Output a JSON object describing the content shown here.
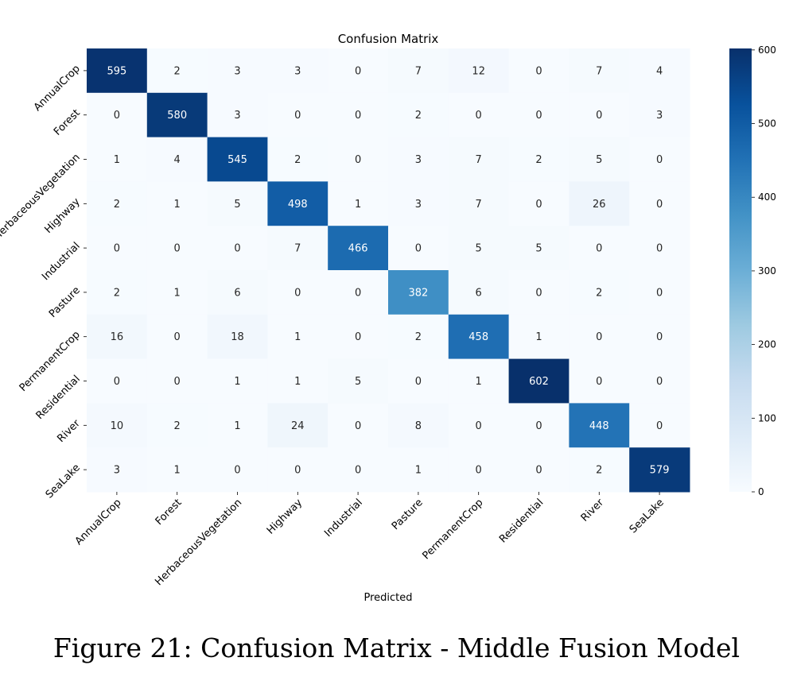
{
  "chart_data": {
    "type": "heatmap",
    "title": "Confusion Matrix",
    "xlabel": "Predicted",
    "ylabel": "",
    "x_categories": [
      "AnnualCrop",
      "Forest",
      "HerbaceousVegetation",
      "Highway",
      "Industrial",
      "Pasture",
      "PermanentCrop",
      "Residential",
      "River",
      "SeaLake"
    ],
    "y_categories": [
      "AnnualCrop",
      "Forest",
      "HerbaceousVegetation",
      "Highway",
      "Industrial",
      "Pasture",
      "PermanentCrop",
      "Residential",
      "River",
      "SeaLake"
    ],
    "values": [
      [
        595,
        2,
        3,
        3,
        0,
        7,
        12,
        0,
        7,
        4
      ],
      [
        0,
        580,
        3,
        0,
        0,
        2,
        0,
        0,
        0,
        3
      ],
      [
        1,
        4,
        545,
        2,
        0,
        3,
        7,
        2,
        5,
        0
      ],
      [
        2,
        1,
        5,
        498,
        1,
        3,
        7,
        0,
        26,
        0
      ],
      [
        0,
        0,
        0,
        7,
        466,
        0,
        5,
        5,
        0,
        0
      ],
      [
        2,
        1,
        6,
        0,
        0,
        382,
        6,
        0,
        2,
        0
      ],
      [
        16,
        0,
        18,
        1,
        0,
        2,
        458,
        1,
        0,
        0
      ],
      [
        0,
        0,
        1,
        1,
        5,
        0,
        1,
        602,
        0,
        0
      ],
      [
        10,
        2,
        1,
        24,
        0,
        8,
        0,
        0,
        448,
        0
      ],
      [
        3,
        1,
        0,
        0,
        0,
        1,
        0,
        0,
        2,
        579
      ]
    ],
    "colorbar": {
      "min": 0,
      "max": 602,
      "ticks": [
        0,
        100,
        200,
        300,
        400,
        500,
        600
      ],
      "colormap": "Blues"
    }
  },
  "caption": "Figure 21: Confusion Matrix - Middle Fusion Model"
}
